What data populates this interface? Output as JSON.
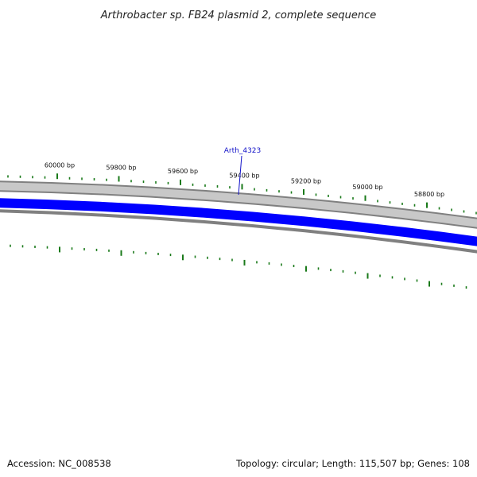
{
  "title": "Arthrobacter sp. FB24 plasmid 2, complete sequence",
  "accession": "Accession: NC_008538",
  "summary": "Topology: circular; Length: 115,507 bp; Genes: 108",
  "gene": {
    "label": "Arth_4323",
    "color": "#0000ff"
  },
  "colors": {
    "tick": "#1a7a1a",
    "backbone": "#808080",
    "backbone_fill": "#c8c8c8",
    "gene_track": "#0000ff",
    "gene_label": "#1010c8"
  },
  "bp_ticks": [
    {
      "label": "60000 bp"
    },
    {
      "label": "59800 bp"
    },
    {
      "label": "59600 bp"
    },
    {
      "label": "59400 bp"
    },
    {
      "label": "59200 bp"
    },
    {
      "label": "59000 bp"
    },
    {
      "label": "58800 bp"
    }
  ]
}
